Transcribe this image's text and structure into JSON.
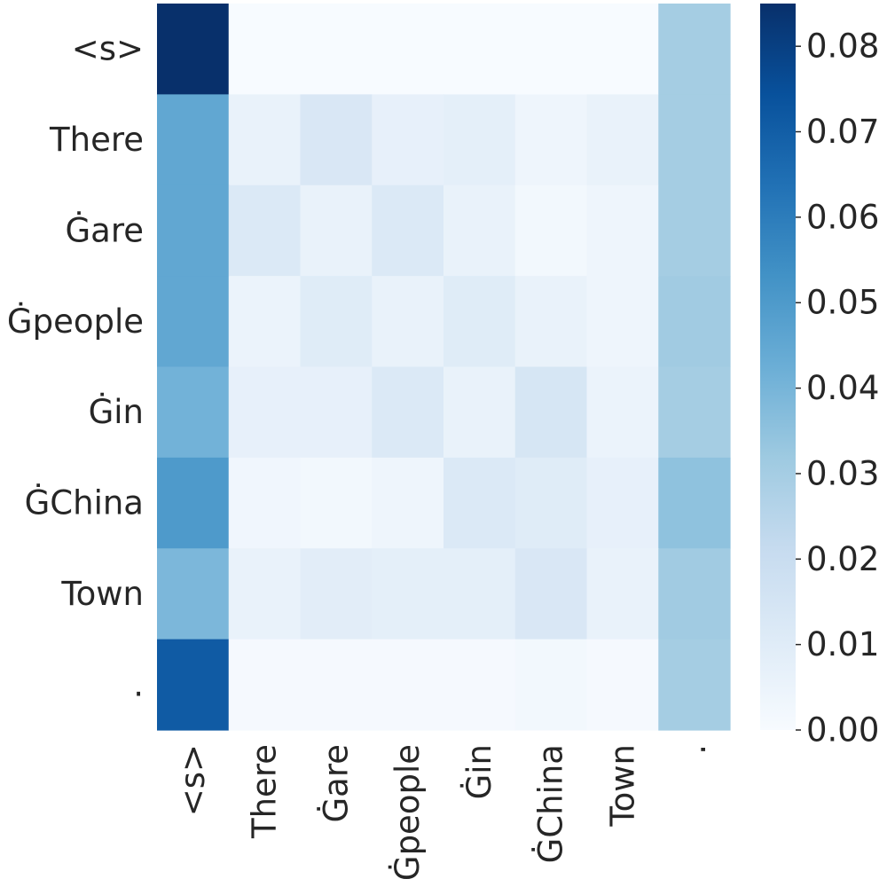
{
  "chart_data": {
    "type": "heatmap",
    "title": "",
    "xlabel": "",
    "ylabel": "",
    "x_labels": [
      "<s>",
      "There",
      "Ġare",
      "Ġpeople",
      "Ġin",
      "ĠChina",
      "Town",
      "."
    ],
    "y_labels": [
      "<s>",
      "There",
      "Ġare",
      "Ġpeople",
      "Ġin",
      "ĠChina",
      "Town",
      "."
    ],
    "values": [
      [
        0.085,
        0.0,
        0.0,
        0.0,
        0.0,
        0.0,
        0.0,
        0.03
      ],
      [
        0.045,
        0.006,
        0.013,
        0.007,
        0.008,
        0.004,
        0.006,
        0.03
      ],
      [
        0.045,
        0.012,
        0.006,
        0.012,
        0.006,
        0.002,
        0.004,
        0.03
      ],
      [
        0.045,
        0.005,
        0.01,
        0.006,
        0.01,
        0.006,
        0.004,
        0.031
      ],
      [
        0.041,
        0.007,
        0.007,
        0.012,
        0.006,
        0.014,
        0.005,
        0.03
      ],
      [
        0.05,
        0.003,
        0.002,
        0.004,
        0.012,
        0.01,
        0.007,
        0.035
      ],
      [
        0.039,
        0.006,
        0.009,
        0.008,
        0.008,
        0.013,
        0.006,
        0.031
      ],
      [
        0.071,
        0.001,
        0.001,
        0.001,
        0.001,
        0.002,
        0.001,
        0.03
      ]
    ],
    "colorbar": {
      "range": [
        0.0,
        0.085
      ],
      "ticks": [
        0.0,
        0.01,
        0.02,
        0.03,
        0.04,
        0.05,
        0.06,
        0.07,
        0.08
      ],
      "tick_labels": [
        "0.00",
        "0.01",
        "0.02",
        "0.03",
        "0.04",
        "0.05",
        "0.06",
        "0.07",
        "0.08"
      ]
    },
    "colormap": "Blues",
    "colormap_stops": [
      "#f7fbff",
      "#deebf7",
      "#c6dbef",
      "#9ecae1",
      "#6baed6",
      "#4292c6",
      "#2171b5",
      "#08519c",
      "#08306b"
    ]
  }
}
